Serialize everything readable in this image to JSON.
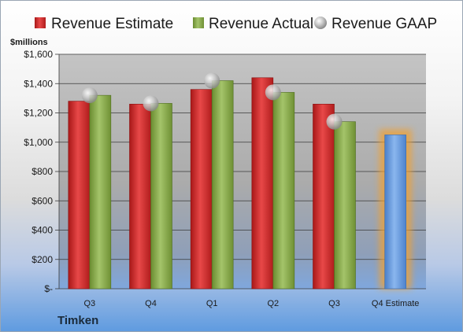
{
  "company": "Timken",
  "chart_data": {
    "type": "bar",
    "unit_label": "$millions",
    "categories": [
      "Q3",
      "Q4",
      "Q1",
      "Q2",
      "Q3",
      "Q4 Estimate"
    ],
    "ylim": [
      0,
      1600
    ],
    "yticks": [
      0,
      200,
      400,
      600,
      800,
      1000,
      1200,
      1400,
      1600
    ],
    "ytick_labels": [
      "$-",
      "$200",
      "$400",
      "$600",
      "$800",
      "$1,000",
      "$1,200",
      "$1,400",
      "$1,600"
    ],
    "grid": true,
    "legend_position": "top",
    "series": [
      {
        "name": "Revenue Estimate",
        "kind": "bar",
        "color": "#d42a2a",
        "values": [
          1280,
          1260,
          1360,
          1440,
          1260,
          null
        ]
      },
      {
        "name": "Revenue Actual",
        "kind": "bar",
        "color": "#8db04e",
        "values": [
          1320,
          1265,
          1420,
          1340,
          1140,
          null
        ]
      },
      {
        "name": "Revenue GAAP",
        "kind": "marker",
        "color": "#b0b0b0",
        "values": [
          1320,
          1265,
          1420,
          1340,
          1140,
          null
        ]
      }
    ],
    "highlight": {
      "category_index": 5,
      "value": 1050,
      "color": "#6a9ee0",
      "glow": "#f0a030"
    }
  }
}
